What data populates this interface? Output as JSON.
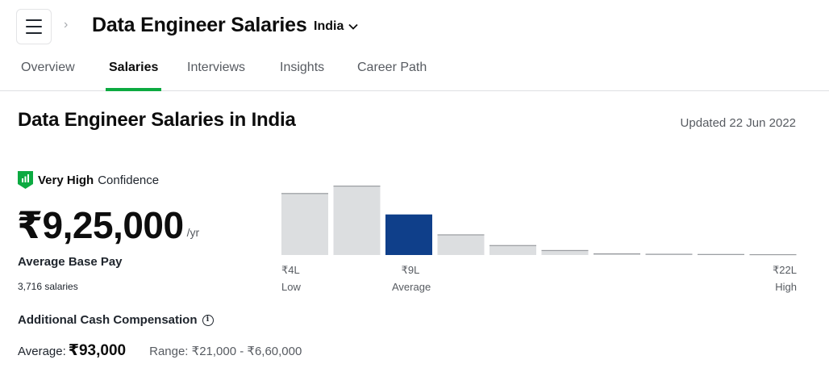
{
  "header": {
    "title": "Data Engineer Salaries",
    "location": "India"
  },
  "tabs": [
    {
      "label": "Overview",
      "active": false
    },
    {
      "label": "Salaries",
      "active": true
    },
    {
      "label": "Interviews",
      "active": false
    },
    {
      "label": "Insights",
      "active": false
    },
    {
      "label": "Career Path",
      "active": false
    }
  ],
  "main": {
    "title": "Data Engineer Salaries in India",
    "updated": "Updated 22 Jun 2022"
  },
  "confidence": {
    "level": "Very High",
    "label": "Confidence"
  },
  "pay": {
    "value": "₹9,25,000",
    "unit": "/yr",
    "label": "Average Base Pay",
    "count": "3,716 salaries"
  },
  "additional": {
    "title": "Additional Cash Compensation",
    "average_label": "Average:",
    "average_value": "₹93,000",
    "range": "Range: ₹21,000 - ₹6,60,000"
  },
  "colors": {
    "accent": "#0caa41",
    "bar": "#dcdee0",
    "bar_highlight": "#0f3f8a"
  },
  "chart_data": {
    "type": "bar",
    "values": [
      75,
      84,
      49,
      25,
      12,
      6,
      2,
      1.5,
      1.2,
      1.0
    ],
    "highlight_index": 2,
    "ticks": {
      "low_value": "₹4L",
      "low_label": "Low",
      "avg_value": "₹9L",
      "avg_label": "Average",
      "high_value": "₹22L",
      "high_label": "High"
    }
  }
}
